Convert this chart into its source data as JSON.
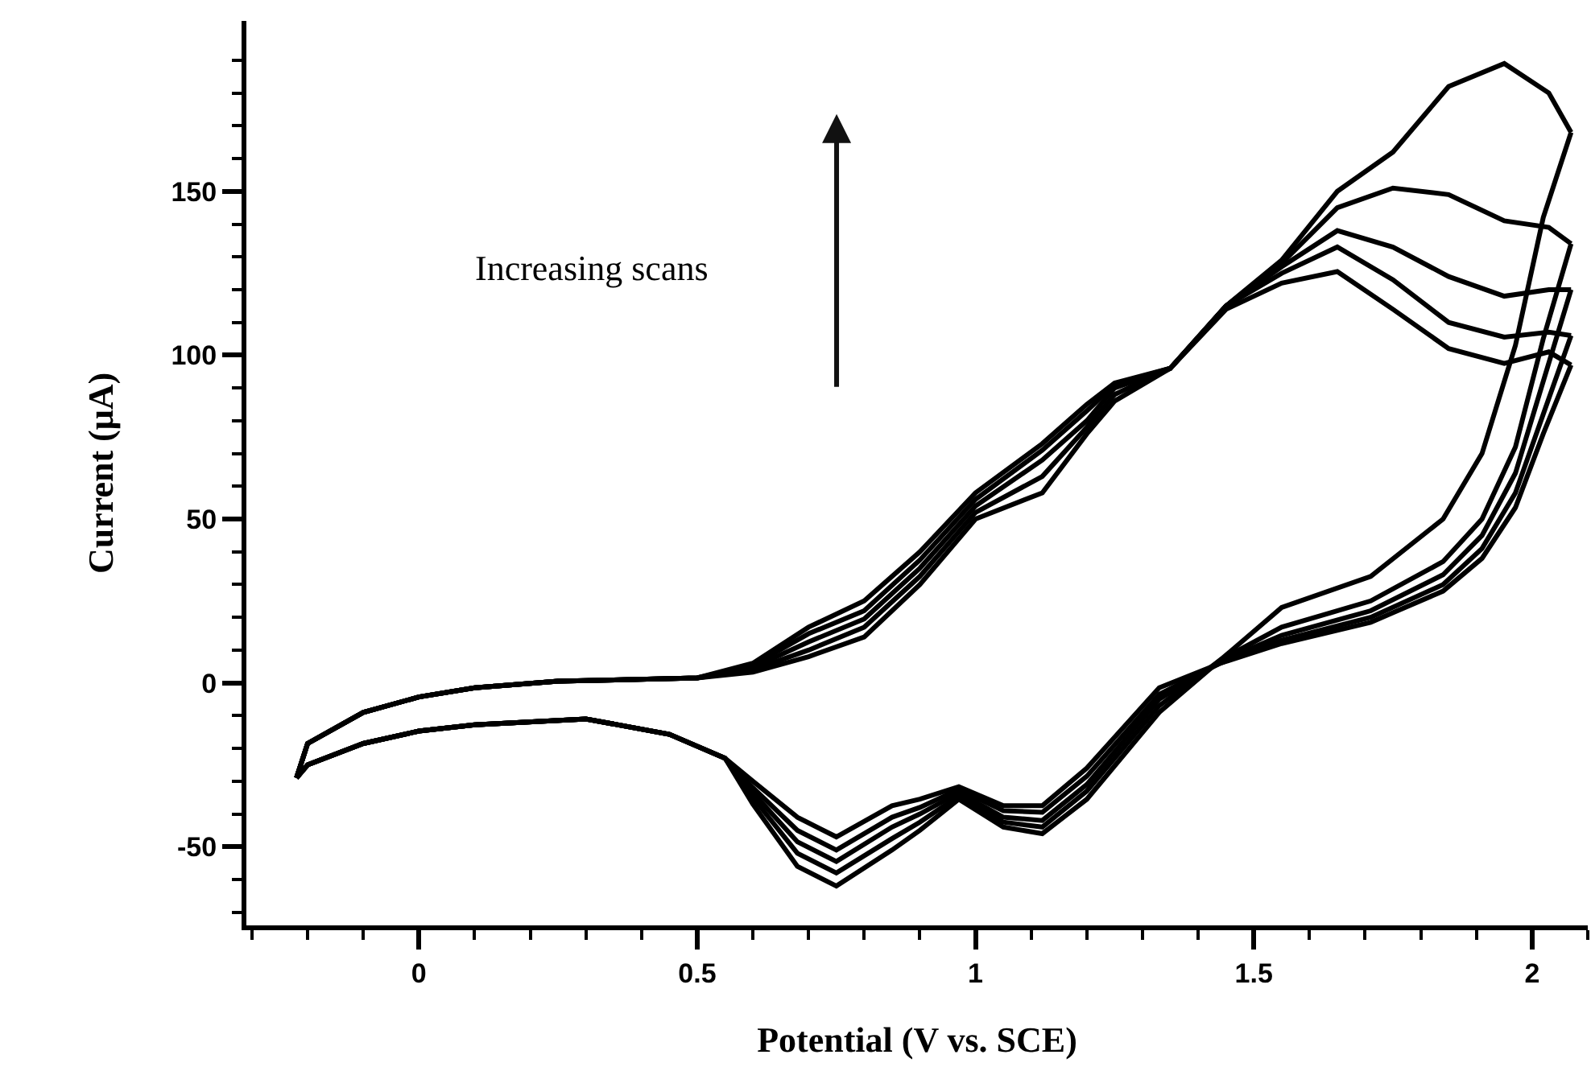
{
  "chart_data": {
    "type": "line",
    "xlabel": "Potential (V vs. SCE)",
    "ylabel": "Current (μA)",
    "annotations": [
      "Increasing scans"
    ],
    "series": [
      {
        "color": "#000000",
        "x": [
          -0.22,
          -0.2,
          -0.1,
          0,
          0.1,
          0.25,
          0.5,
          0.6,
          0.7,
          0.8,
          0.9,
          1.0,
          1.12,
          1.2,
          1.25,
          1.35,
          1.45,
          1.55,
          1.65,
          1.75,
          1.85,
          1.95,
          2.03,
          2.07
        ],
        "values": [
          -29,
          -18.5,
          -9,
          -4.3,
          -1.5,
          0.5,
          1.5,
          3.3,
          8,
          14,
          30,
          50,
          58,
          76,
          86,
          96,
          114,
          122,
          125.5,
          114,
          102,
          97.5,
          101,
          97
        ]
      },
      {
        "color": "#000000",
        "x": [
          -0.22,
          -0.2,
          -0.1,
          0,
          0.1,
          0.3,
          0.45,
          0.55,
          0.6,
          0.68,
          0.75,
          0.85,
          0.9,
          0.97,
          1.05,
          1.12,
          1.2,
          1.33,
          1.44,
          1.55,
          1.71,
          1.84,
          1.91,
          1.97,
          2.02,
          2.07
        ],
        "values": [
          -29,
          -25,
          -18.5,
          -14.7,
          -12.8,
          -11,
          -15.7,
          -23,
          -30,
          -41,
          -47,
          -37.5,
          -35.5,
          -31.7,
          -37.5,
          -37.5,
          -26,
          -1.5,
          6,
          12,
          18.5,
          28,
          38,
          53.5,
          76,
          97
        ]
      },
      {
        "color": "#000000",
        "x": [
          -0.22,
          -0.2,
          -0.1,
          0,
          0.1,
          0.25,
          0.5,
          0.6,
          0.7,
          0.8,
          0.9,
          1.0,
          1.12,
          1.2,
          1.25,
          1.35,
          1.45,
          1.55,
          1.65,
          1.75,
          1.85,
          1.95,
          2.03,
          2.07
        ],
        "values": [
          -29,
          -18.5,
          -9,
          -4.3,
          -1.5,
          0.5,
          1.5,
          4,
          10,
          17,
          32.5,
          52,
          63,
          78,
          88,
          96,
          115,
          125,
          133,
          123,
          110,
          105.5,
          107,
          106
        ]
      },
      {
        "color": "#000000",
        "x": [
          -0.22,
          -0.2,
          -0.1,
          0,
          0.1,
          0.3,
          0.45,
          0.55,
          0.6,
          0.68,
          0.75,
          0.85,
          0.9,
          0.97,
          1.05,
          1.12,
          1.2,
          1.33,
          1.44,
          1.55,
          1.71,
          1.84,
          1.91,
          1.97,
          2.02,
          2.07
        ],
        "values": [
          -29,
          -25,
          -18.5,
          -14.7,
          -12.8,
          -11,
          -15.7,
          -23,
          -32,
          -45,
          -51,
          -41,
          -38,
          -32.5,
          -39,
          -39.5,
          -28.5,
          -3.5,
          6,
          13,
          20,
          30,
          41,
          58,
          82,
          106
        ]
      },
      {
        "color": "#000000",
        "x": [
          -0.22,
          -0.2,
          -0.1,
          0,
          0.1,
          0.25,
          0.5,
          0.6,
          0.7,
          0.8,
          0.9,
          1.0,
          1.12,
          1.2,
          1.25,
          1.35,
          1.45,
          1.55,
          1.65,
          1.75,
          1.85,
          1.95,
          2.03,
          2.07
        ],
        "values": [
          -29,
          -18.5,
          -9,
          -4.3,
          -1.5,
          0.5,
          1.5,
          4.7,
          12.5,
          19.5,
          35,
          54,
          68,
          80,
          90,
          96,
          115,
          127,
          138,
          133,
          124,
          118,
          120,
          120
        ]
      },
      {
        "color": "#000000",
        "x": [
          -0.22,
          -0.2,
          -0.1,
          0,
          0.1,
          0.3,
          0.45,
          0.55,
          0.6,
          0.68,
          0.75,
          0.85,
          0.9,
          0.97,
          1.05,
          1.12,
          1.2,
          1.33,
          1.44,
          1.55,
          1.71,
          1.84,
          1.91,
          1.97,
          2.02,
          2.07
        ],
        "values": [
          -29,
          -25,
          -18.5,
          -14.7,
          -12.8,
          -11,
          -15.7,
          -23,
          -33.5,
          -48.5,
          -54.5,
          -44,
          -40,
          -33.5,
          -41,
          -42,
          -31,
          -5,
          6.5,
          14.5,
          22,
          33,
          45,
          64,
          92,
          120
        ]
      },
      {
        "color": "#000000",
        "x": [
          -0.22,
          -0.2,
          -0.1,
          0,
          0.1,
          0.25,
          0.5,
          0.6,
          0.7,
          0.8,
          0.9,
          1.0,
          1.12,
          1.2,
          1.25,
          1.35,
          1.45,
          1.55,
          1.65,
          1.75,
          1.85,
          1.95,
          2.03,
          2.07
        ],
        "values": [
          -29,
          -18.5,
          -9,
          -4.3,
          -1.5,
          0.5,
          1.5,
          5.4,
          15,
          22,
          37.5,
          56,
          71,
          83,
          91,
          96,
          115,
          128,
          145,
          151,
          149,
          141,
          139,
          134
        ]
      },
      {
        "color": "#000000",
        "x": [
          -0.22,
          -0.2,
          -0.1,
          0,
          0.1,
          0.3,
          0.45,
          0.55,
          0.6,
          0.68,
          0.75,
          0.85,
          0.9,
          0.97,
          1.05,
          1.12,
          1.2,
          1.33,
          1.44,
          1.55,
          1.71,
          1.84,
          1.91,
          1.97,
          2.02,
          2.07
        ],
        "values": [
          -29,
          -25,
          -18.5,
          -14.7,
          -12.8,
          -11,
          -15.7,
          -23,
          -35,
          -52,
          -58,
          -47.5,
          -42.5,
          -34.5,
          -42.5,
          -44,
          -33,
          -7,
          7,
          17,
          25,
          37,
          50,
          72,
          105,
          134
        ]
      },
      {
        "color": "#000000",
        "x": [
          -0.22,
          -0.2,
          -0.1,
          0,
          0.1,
          0.25,
          0.5,
          0.6,
          0.7,
          0.8,
          0.9,
          1.0,
          1.12,
          1.2,
          1.25,
          1.35,
          1.45,
          1.55,
          1.65,
          1.75,
          1.85,
          1.95,
          2.03,
          2.07
        ],
        "values": [
          -29,
          -18.5,
          -9,
          -4.3,
          -1.5,
          0.5,
          1.5,
          6,
          17,
          25,
          40,
          58,
          73,
          85,
          91.5,
          96,
          115,
          129,
          150,
          162,
          182,
          189,
          180,
          168
        ]
      },
      {
        "color": "#000000",
        "x": [
          -0.22,
          -0.2,
          -0.1,
          0,
          0.1,
          0.3,
          0.45,
          0.55,
          0.6,
          0.68,
          0.75,
          0.85,
          0.9,
          0.97,
          1.05,
          1.12,
          1.2,
          1.33,
          1.44,
          1.55,
          1.71,
          1.84,
          1.91,
          1.97,
          2.02,
          2.07
        ],
        "values": [
          -29,
          -25,
          -18.5,
          -14.7,
          -12.8,
          -11,
          -15.7,
          -23,
          -37,
          -56,
          -62,
          -51,
          -45,
          -35.5,
          -44,
          -46,
          -35.5,
          -9,
          7,
          23,
          32.5,
          50,
          70,
          103,
          142,
          168
        ]
      }
    ],
    "xlim": [
      -0.31,
      2.1
    ],
    "xticks": [
      0,
      0.5,
      1,
      1.5,
      2,
      {
        "value": -0.3,
        "label": null
      },
      {
        "value": -0.2,
        "label": null
      },
      {
        "value": -0.1,
        "label": null
      },
      {
        "value": 0.1,
        "label": null
      },
      {
        "value": 0.2,
        "label": null
      },
      {
        "value": 0.3,
        "label": null
      },
      {
        "value": 0.4,
        "label": null
      },
      {
        "value": 0.6,
        "label": null
      },
      {
        "value": 0.7,
        "label": null
      },
      {
        "value": 0.8,
        "label": null
      },
      {
        "value": 0.9,
        "label": null
      },
      {
        "value": 1.1,
        "label": null
      },
      {
        "value": 1.2,
        "label": null
      },
      {
        "value": 1.3,
        "label": null
      },
      {
        "value": 1.4,
        "label": null
      },
      {
        "value": 1.6,
        "label": null
      },
      {
        "value": 1.7,
        "label": null
      },
      {
        "value": 1.8,
        "label": null
      },
      {
        "value": 1.9,
        "label": null
      },
      {
        "value": 2.1,
        "label": null
      }
    ],
    "ylim": [
      -74,
      202
    ],
    "yticks": [
      -50,
      0,
      50,
      100,
      150,
      {
        "value": -70,
        "label": null
      },
      {
        "value": -60,
        "label": null
      },
      {
        "value": -40,
        "label": null
      },
      {
        "value": -30,
        "label": null
      },
      {
        "value": -20,
        "label": null
      },
      {
        "value": -10,
        "label": null
      },
      {
        "value": 10,
        "label": null
      },
      {
        "value": 20,
        "label": null
      },
      {
        "value": 30,
        "label": null
      },
      {
        "value": 40,
        "label": null
      },
      {
        "value": 60,
        "label": null
      },
      {
        "value": 70,
        "label": null
      },
      {
        "value": 80,
        "label": null
      },
      {
        "value": 90,
        "label": null
      },
      {
        "value": 110,
        "label": null
      },
      {
        "value": 120,
        "label": null
      },
      {
        "value": 130,
        "label": null
      },
      {
        "value": 140,
        "label": null
      },
      {
        "value": 160,
        "label": null
      },
      {
        "value": 170,
        "label": null
      },
      {
        "value": 180,
        "label": null
      },
      {
        "value": 190,
        "label": null
      }
    ],
    "marker": "none",
    "line_style": "solid"
  }
}
